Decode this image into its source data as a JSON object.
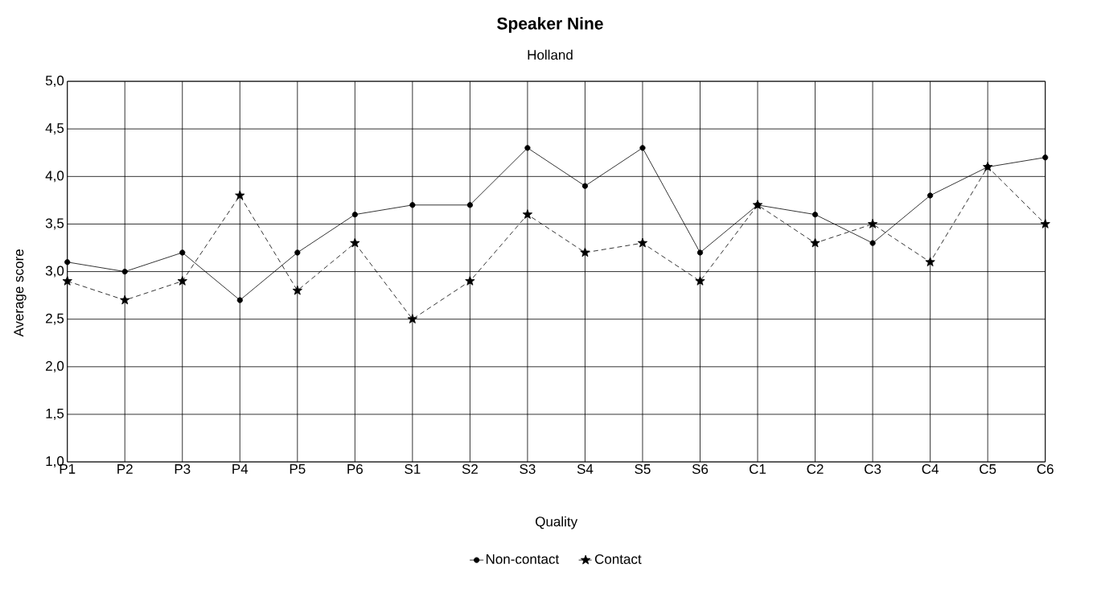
{
  "chart_data": {
    "type": "line",
    "title": "Speaker Nine",
    "subtitle": "Holland",
    "xlabel": "Quality",
    "ylabel": "Average score",
    "categories": [
      "P1",
      "P2",
      "P3",
      "P4",
      "P5",
      "P6",
      "S1",
      "S2",
      "S3",
      "S4",
      "S5",
      "S6",
      "C1",
      "C2",
      "C3",
      "C4",
      "C5",
      "C6"
    ],
    "series": [
      {
        "name": "Non-contact",
        "color": "#000000",
        "marker": "circle",
        "line_style": "solid",
        "values": [
          3.1,
          3.0,
          3.2,
          2.7,
          3.2,
          3.6,
          3.7,
          3.7,
          4.3,
          3.9,
          4.3,
          3.2,
          3.7,
          3.6,
          3.3,
          3.8,
          4.1,
          4.2
        ]
      },
      {
        "name": "Contact",
        "color": "#000000",
        "marker": "star",
        "line_style": "dashed",
        "values": [
          2.9,
          2.7,
          2.9,
          3.8,
          2.8,
          3.3,
          2.5,
          2.9,
          3.6,
          3.2,
          3.3,
          2.9,
          3.7,
          3.3,
          3.5,
          3.1,
          4.1,
          3.5
        ]
      }
    ],
    "ylim": [
      1.0,
      5.0
    ],
    "yticks": [
      {
        "value": 1.0,
        "label": "1,0"
      },
      {
        "value": 1.5,
        "label": "1,5"
      },
      {
        "value": 2.0,
        "label": "2,0"
      },
      {
        "value": 2.5,
        "label": "2,5"
      },
      {
        "value": 3.0,
        "label": "3,0"
      },
      {
        "value": 3.5,
        "label": "3,5"
      },
      {
        "value": 4.0,
        "label": "4,0"
      },
      {
        "value": 4.5,
        "label": "4,5"
      },
      {
        "value": 5.0,
        "label": "5,0"
      }
    ],
    "grid": true,
    "legend": "bottom"
  }
}
